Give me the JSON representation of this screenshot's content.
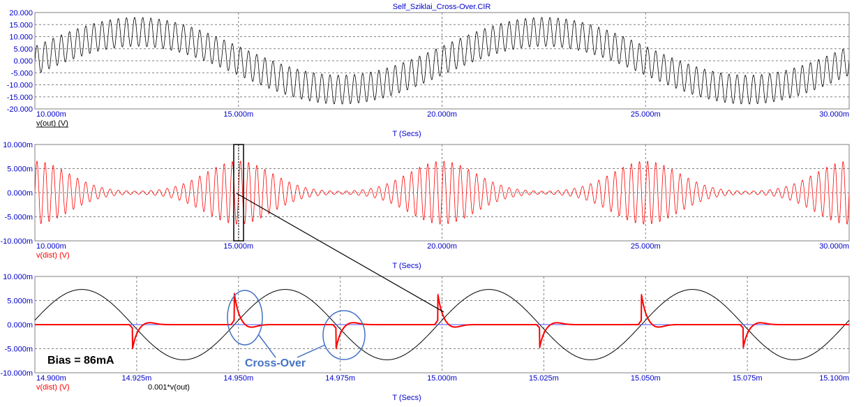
{
  "window": {
    "title": "Self_Sziklai_Cross-Over.CIR"
  },
  "annotations": {
    "bias_label": "Bias = 86mA",
    "crossover_label": "Cross-Over",
    "annotation_color": "#4472c4"
  },
  "colors": {
    "axis_text": "#0000cc",
    "grid": "#808080",
    "red_trace": "#ff0000",
    "black_trace": "#000000"
  },
  "chart_data": [
    {
      "type": "line",
      "title": "Self_Sziklai_Cross-Over.CIR",
      "xlabel": "T (Secs)",
      "xlim": [
        0.01,
        0.03
      ],
      "ylim": [
        -20,
        20
      ],
      "xticks": [
        "10.000m",
        "15.000m",
        "20.000m",
        "25.000m",
        "30.000m"
      ],
      "yticks": [
        "20.000",
        "15.000",
        "10.000",
        "5.000",
        "0.000",
        "-5.000",
        "-10.000",
        "-15.000",
        "-20.000"
      ],
      "grid": true,
      "series": [
        {
          "name": "v(out) (V)",
          "color": "#000000",
          "description_values": {
            "envelope_center_amplitude_V": 12,
            "envelope_frequency_Hz": 100,
            "carrier_amplitude_V": 6,
            "carrier_frequency_Hz": 10000
          }
        }
      ]
    },
    {
      "type": "line",
      "xlabel": "T (Secs)",
      "xlim": [
        0.01,
        0.03
      ],
      "ylim": [
        -10,
        10
      ],
      "xticks": [
        "10.000m",
        "15.000m",
        "20.000m",
        "25.000m",
        "30.000m"
      ],
      "yticks": [
        "10.000m",
        "5.000m",
        "0.000m",
        "-5.000m",
        "-10.000m"
      ],
      "grid": true,
      "series": [
        {
          "name": "v(dist) (V)",
          "color": "#ff0000",
          "burst_centers_s": [
            0.01,
            0.015,
            0.02,
            0.025,
            0.03
          ],
          "peak_value_mV": 6.3
        }
      ]
    },
    {
      "type": "line",
      "xlabel": "T (Secs)",
      "xlim": [
        0.0149,
        0.0151
      ],
      "ylim": [
        -10,
        10
      ],
      "xticks": [
        "14.900m",
        "14.925m",
        "14.950m",
        "14.975m",
        "15.000m",
        "15.025m",
        "15.050m",
        "15.075m",
        "15.100m"
      ],
      "yticks": [
        "10.000m",
        "5.000m",
        "0.000m",
        "-5.000m",
        "-10.000m"
      ],
      "grid": true,
      "series": [
        {
          "name": "v(dist) (V)",
          "color": "#ff0000",
          "spikes": [
            {
              "t": 0.014924,
              "value_mV": -5.0
            },
            {
              "t": 0.014949,
              "value_mV": 6.5
            },
            {
              "t": 0.014974,
              "value_mV": -5.0
            },
            {
              "t": 0.014999,
              "value_mV": 6.3
            },
            {
              "t": 0.015024,
              "value_mV": -4.8
            },
            {
              "t": 0.015049,
              "value_mV": 6.3
            },
            {
              "t": 0.015074,
              "value_mV": -4.8
            }
          ]
        },
        {
          "name": "0.001*v(out)",
          "color": "#000000",
          "amplitude_mV": 7.3,
          "period_s": 5e-05,
          "zero_crossings_s": [
            0.014924,
            0.014949,
            0.014974,
            0.014999,
            0.015024,
            0.015049,
            0.015074
          ]
        }
      ]
    }
  ]
}
